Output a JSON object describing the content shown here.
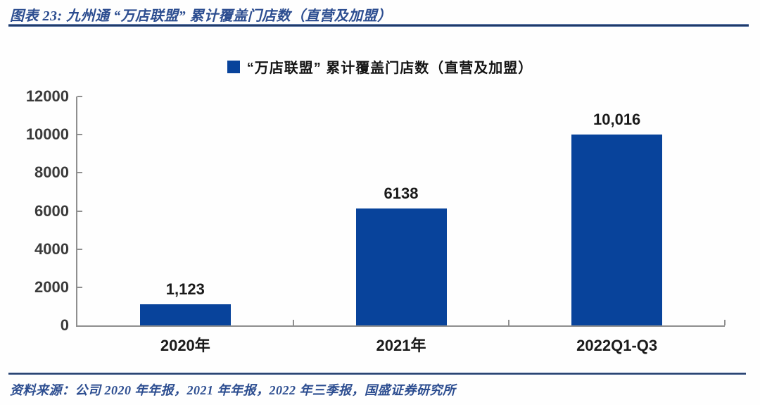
{
  "header": {
    "figure_title": "图表 23:  九州通 “万店联盟” 累计覆盖门店数（直营及加盟）"
  },
  "chart_data": {
    "type": "bar",
    "title": "“万店联盟” 累计覆盖门店数（直营及加盟）",
    "legend_label": "“万店联盟” 累计覆盖门店数（直营及加盟）",
    "legend_position": "top-center",
    "categories": [
      "2020年",
      "2021年",
      "2022Q1-Q3"
    ],
    "values": [
      1123,
      6138,
      10016
    ],
    "value_labels": [
      "1,123",
      "6138",
      "10,016"
    ],
    "xlabel": "",
    "ylabel": "",
    "ylim": [
      0,
      12000
    ],
    "yticks": [
      0,
      2000,
      4000,
      6000,
      8000,
      10000,
      12000
    ],
    "grid": false,
    "bar_color": "#08439b"
  },
  "footer": {
    "source": "资料来源：公司 2020 年年报，2021 年年报，2022 年三季报，国盛证券研究所"
  },
  "colors": {
    "bar_blue": "#08439b",
    "title_blue": "#2c4d90",
    "separator_navy": "#1f3864",
    "axis_gray": "#8f8f8f"
  }
}
